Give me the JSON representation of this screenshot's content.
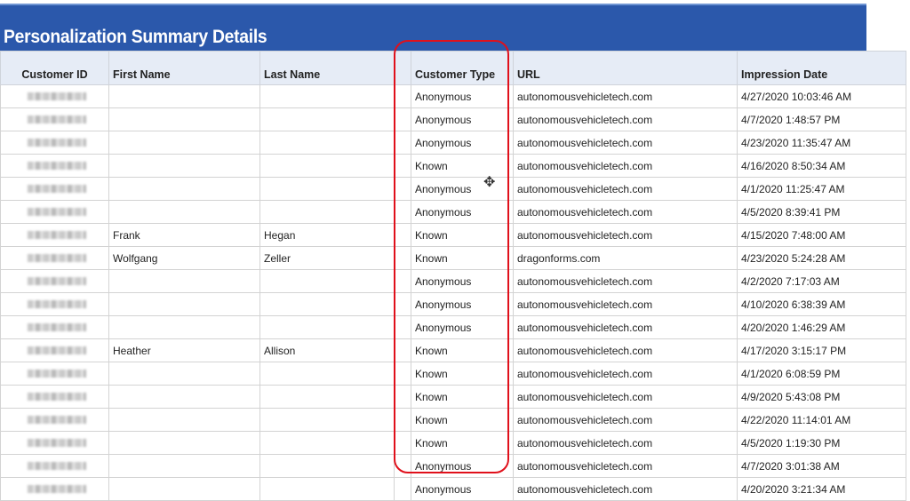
{
  "title": "Personalization Summary Details",
  "colors": {
    "banner": "#2b58ab",
    "header_bg": "#e6ecf6",
    "highlight": "#e0101b"
  },
  "columns": [
    "Customer ID",
    "First Name",
    "Last Name",
    "",
    "Customer Type",
    "URL",
    "Impression Date"
  ],
  "rows": [
    {
      "first": "",
      "last": "",
      "type": "Anonymous",
      "url": "autonomousvehicletech.com",
      "date": "4/27/2020 10:03:46 AM"
    },
    {
      "first": "",
      "last": "",
      "type": "Anonymous",
      "url": "autonomousvehicletech.com",
      "date": "4/7/2020 1:48:57 PM"
    },
    {
      "first": "",
      "last": "",
      "type": "Anonymous",
      "url": "autonomousvehicletech.com",
      "date": "4/23/2020 11:35:47 AM"
    },
    {
      "first": "",
      "last": "",
      "type": "Known",
      "url": "autonomousvehicletech.com",
      "date": "4/16/2020 8:50:34 AM"
    },
    {
      "first": "",
      "last": "",
      "type": "Anonymous",
      "url": "autonomousvehicletech.com",
      "date": "4/1/2020 11:25:47 AM"
    },
    {
      "first": "",
      "last": "",
      "type": "Anonymous",
      "url": "autonomousvehicletech.com",
      "date": "4/5/2020 8:39:41 PM"
    },
    {
      "first": "Frank",
      "last": "Hegan",
      "type": "Known",
      "url": "autonomousvehicletech.com",
      "date": "4/15/2020 7:48:00 AM"
    },
    {
      "first": "Wolfgang",
      "last": "Zeller",
      "type": "Known",
      "url": "dragonforms.com",
      "date": "4/23/2020 5:24:28 AM"
    },
    {
      "first": "",
      "last": "",
      "type": "Anonymous",
      "url": "autonomousvehicletech.com",
      "date": "4/2/2020 7:17:03 AM"
    },
    {
      "first": "",
      "last": "",
      "type": "Anonymous",
      "url": "autonomousvehicletech.com",
      "date": "4/10/2020 6:38:39 AM"
    },
    {
      "first": "",
      "last": "",
      "type": "Anonymous",
      "url": "autonomousvehicletech.com",
      "date": "4/20/2020 1:46:29 AM"
    },
    {
      "first": "Heather",
      "last": "Allison",
      "type": "Known",
      "url": "autonomousvehicletech.com",
      "date": "4/17/2020 3:15:17 PM"
    },
    {
      "first": "",
      "last": "",
      "type": "Known",
      "url": "autonomousvehicletech.com",
      "date": "4/1/2020 6:08:59 PM"
    },
    {
      "first": "",
      "last": "",
      "type": "Known",
      "url": "autonomousvehicletech.com",
      "date": "4/9/2020 5:43:08 PM"
    },
    {
      "first": "",
      "last": "",
      "type": "Known",
      "url": "autonomousvehicletech.com",
      "date": "4/22/2020 11:14:01 AM"
    },
    {
      "first": "",
      "last": "",
      "type": "Known",
      "url": "autonomousvehicletech.com",
      "date": "4/5/2020 1:19:30 PM"
    },
    {
      "first": "",
      "last": "",
      "type": "Anonymous",
      "url": "autonomousvehicletech.com",
      "date": "4/7/2020 3:01:38 AM"
    },
    {
      "first": "",
      "last": "",
      "type": "Anonymous",
      "url": "autonomousvehicletech.com",
      "date": "4/20/2020 3:21:34 AM"
    }
  ]
}
